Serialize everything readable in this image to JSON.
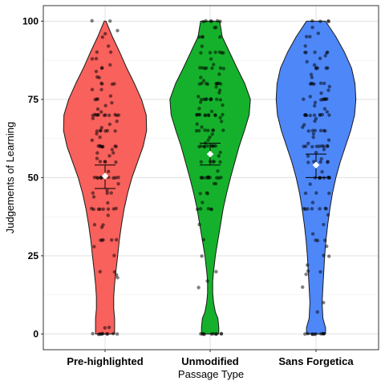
{
  "chart_data": {
    "type": "violin",
    "xlabel": "Passage Type",
    "ylabel": "Judgements of Learning",
    "ylim": [
      0,
      100
    ],
    "yticks": [
      0,
      25,
      50,
      75,
      100
    ],
    "grid": true,
    "legend": "none",
    "categories": [
      "Pre-highlighted",
      "Unmodified",
      "Sans Forgetica"
    ],
    "colors": [
      "#F8615C",
      "#16B12C",
      "#4E87F8"
    ],
    "means": [
      50.5,
      57.5,
      54
    ],
    "ci_lower": [
      46.5,
      54,
      50
    ],
    "ci_upper": [
      54,
      61,
      57.5
    ],
    "density_profiles": [
      [
        [
          0,
          0.22
        ],
        [
          2,
          0.22
        ],
        [
          5,
          0.22
        ],
        [
          8,
          0.2
        ],
        [
          12,
          0.2
        ],
        [
          16,
          0.22
        ],
        [
          20,
          0.25
        ],
        [
          25,
          0.29
        ],
        [
          30,
          0.33
        ],
        [
          35,
          0.38
        ],
        [
          40,
          0.44
        ],
        [
          45,
          0.52
        ],
        [
          50,
          0.62
        ],
        [
          55,
          0.75
        ],
        [
          60,
          0.88
        ],
        [
          65,
          0.96
        ],
        [
          70,
          0.95
        ],
        [
          75,
          0.84
        ],
        [
          80,
          0.68
        ],
        [
          85,
          0.5
        ],
        [
          90,
          0.34
        ],
        [
          95,
          0.17
        ],
        [
          100,
          0.02
        ]
      ],
      [
        [
          0,
          0.2
        ],
        [
          2,
          0.2
        ],
        [
          5,
          0.18
        ],
        [
          7,
          0.12
        ],
        [
          10,
          0.08
        ],
        [
          13,
          0.06
        ],
        [
          17,
          0.06
        ],
        [
          20,
          0.08
        ],
        [
          25,
          0.12
        ],
        [
          30,
          0.18
        ],
        [
          35,
          0.24
        ],
        [
          40,
          0.3
        ],
        [
          45,
          0.38
        ],
        [
          50,
          0.47
        ],
        [
          55,
          0.57
        ],
        [
          60,
          0.67
        ],
        [
          65,
          0.79
        ],
        [
          70,
          0.9
        ],
        [
          75,
          0.93
        ],
        [
          80,
          0.8
        ],
        [
          85,
          0.62
        ],
        [
          90,
          0.45
        ],
        [
          95,
          0.28
        ],
        [
          100,
          0.22
        ]
      ],
      [
        [
          0,
          0.22
        ],
        [
          2,
          0.22
        ],
        [
          5,
          0.16
        ],
        [
          10,
          0.14
        ],
        [
          15,
          0.16
        ],
        [
          20,
          0.18
        ],
        [
          25,
          0.2
        ],
        [
          30,
          0.23
        ],
        [
          35,
          0.27
        ],
        [
          40,
          0.32
        ],
        [
          45,
          0.38
        ],
        [
          50,
          0.46
        ],
        [
          55,
          0.56
        ],
        [
          60,
          0.68
        ],
        [
          65,
          0.8
        ],
        [
          70,
          0.89
        ],
        [
          75,
          0.92
        ],
        [
          80,
          0.9
        ],
        [
          85,
          0.82
        ],
        [
          90,
          0.66
        ],
        [
          95,
          0.46
        ],
        [
          100,
          0.22
        ]
      ]
    ],
    "points": [
      [
        0,
        0,
        0,
        0,
        0,
        0,
        0,
        0,
        0,
        0,
        2,
        2,
        18,
        19,
        20,
        20,
        25,
        28,
        30,
        30,
        30,
        30,
        30,
        34,
        35,
        35,
        38,
        40,
        40,
        40,
        40,
        40,
        40,
        40,
        40,
        42,
        44,
        45,
        45,
        45,
        46,
        48,
        50,
        50,
        50,
        50,
        50,
        50,
        50,
        50,
        50,
        50,
        52,
        55,
        55,
        55,
        55,
        56,
        57,
        58,
        58,
        59,
        60,
        60,
        60,
        60,
        60,
        60,
        60,
        60,
        62,
        63,
        64,
        65,
        65,
        65,
        65,
        65,
        65,
        66,
        67,
        68,
        69,
        70,
        70,
        70,
        70,
        70,
        70,
        70,
        70,
        70,
        70,
        70,
        71,
        72,
        73,
        74,
        75,
        75,
        75,
        76,
        78,
        78,
        80,
        80,
        80,
        80,
        82,
        82,
        84,
        85,
        85,
        86,
        88,
        88,
        90,
        90,
        92,
        95,
        96,
        97,
        100,
        100
      ],
      [
        0,
        0,
        0,
        0,
        0,
        0,
        0,
        0,
        0,
        0,
        15,
        17,
        20,
        25,
        30,
        35,
        40,
        40,
        40,
        40,
        40,
        42,
        45,
        45,
        45,
        48,
        48,
        50,
        50,
        50,
        50,
        50,
        50,
        50,
        50,
        50,
        50,
        50,
        52,
        55,
        55,
        55,
        55,
        55,
        57,
        58,
        60,
        60,
        60,
        60,
        60,
        60,
        60,
        60,
        60,
        61,
        62,
        63,
        64,
        65,
        65,
        65,
        65,
        65,
        65,
        65,
        66,
        67,
        68,
        69,
        70,
        70,
        70,
        70,
        70,
        70,
        70,
        70,
        70,
        70,
        70,
        71,
        72,
        73,
        74,
        75,
        75,
        75,
        75,
        75,
        75,
        75,
        75,
        75,
        76,
        77,
        78,
        79,
        80,
        80,
        80,
        80,
        80,
        80,
        80,
        80,
        80,
        81,
        82,
        83,
        85,
        85,
        85,
        85,
        85,
        85,
        85,
        86,
        88,
        90,
        90,
        90,
        90,
        90,
        90,
        92,
        95,
        95,
        95,
        95,
        98,
        98,
        100,
        100,
        100,
        100,
        100,
        100
      ],
      [
        0,
        0,
        0,
        0,
        0,
        0,
        0,
        0,
        0,
        0,
        7,
        10,
        15,
        19,
        20,
        20,
        22,
        25,
        25,
        28,
        30,
        30,
        30,
        32,
        35,
        38,
        40,
        40,
        40,
        40,
        40,
        40,
        40,
        42,
        45,
        45,
        45,
        48,
        50,
        50,
        50,
        50,
        50,
        50,
        50,
        50,
        50,
        52,
        55,
        55,
        55,
        55,
        55,
        56,
        57,
        58,
        59,
        60,
        60,
        60,
        60,
        60,
        60,
        60,
        60,
        60,
        61,
        62,
        63,
        64,
        65,
        65,
        65,
        65,
        65,
        65,
        66,
        67,
        68,
        69,
        70,
        70,
        70,
        70,
        70,
        70,
        70,
        70,
        70,
        70,
        71,
        72,
        73,
        74,
        75,
        75,
        75,
        75,
        75,
        75,
        75,
        76,
        77,
        78,
        79,
        80,
        80,
        80,
        80,
        80,
        80,
        82,
        83,
        85,
        85,
        85,
        85,
        85,
        86,
        87,
        88,
        89,
        90,
        90,
        90,
        90,
        90,
        92,
        95,
        95,
        96,
        98,
        100,
        100,
        100,
        100
      ]
    ]
  }
}
